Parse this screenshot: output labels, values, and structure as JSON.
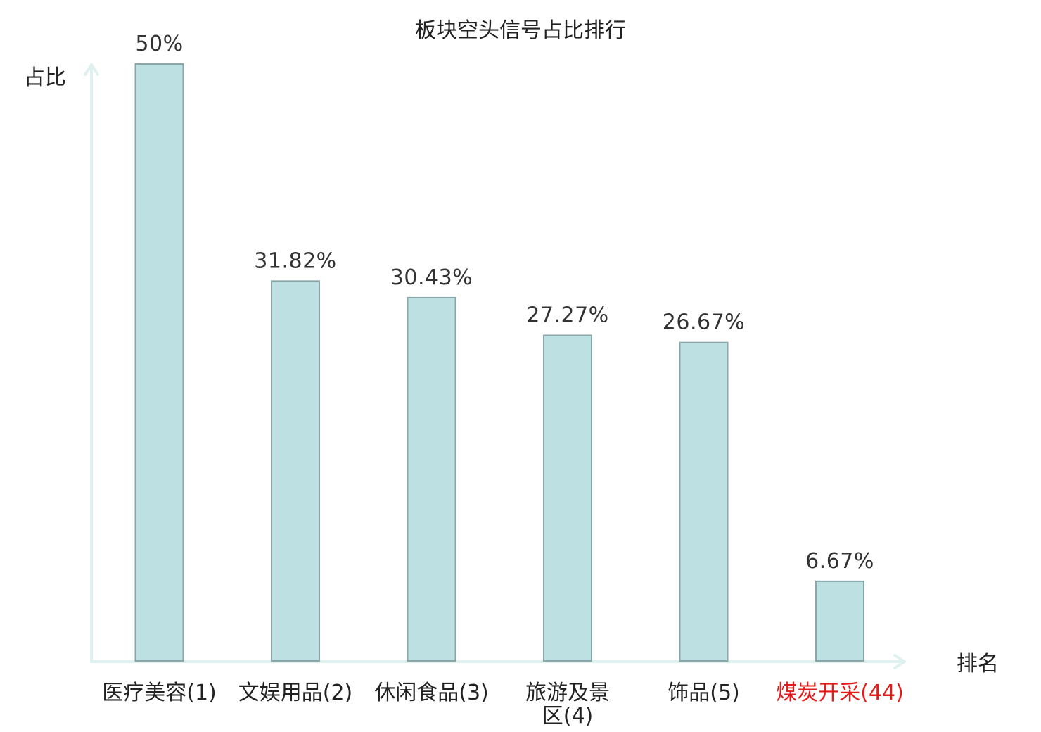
{
  "chart_data": {
    "type": "bar",
    "title": "板块空头信号占比排行",
    "ylabel": "占比",
    "xlabel": "排名",
    "categories": [
      [
        "医疗美容(1)"
      ],
      [
        "文娱用品(2)"
      ],
      [
        "休闲食品(3)"
      ],
      [
        "旅游及景",
        "区(4)"
      ],
      [
        "饰品(5)"
      ],
      [
        "煤炭开采(44)"
      ]
    ],
    "values": [
      50,
      31.82,
      30.43,
      27.27,
      26.67,
      6.67
    ],
    "value_labels": [
      "50%",
      "31.82%",
      "30.43%",
      "27.27%",
      "26.67%",
      "6.67%"
    ],
    "highlight_index": 5,
    "ylim": [
      0,
      50
    ],
    "grid": false,
    "colors": {
      "bar_fill": "#bde0e3",
      "bar_edge": "#8aa6a9",
      "axis": "#dff1ef",
      "highlight_text": "#e31b1b"
    }
  }
}
